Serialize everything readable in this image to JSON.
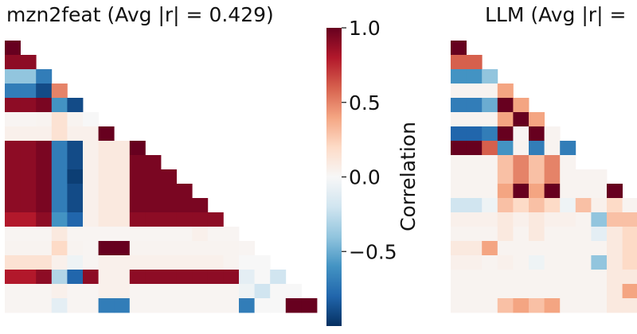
{
  "chart_data": [
    {
      "type": "heatmap",
      "title": "mzn2feat (Avg |r| = 0.429)",
      "lower_triangle": true,
      "n_features": 20,
      "x_tick_labels": [],
      "y_tick_labels": [],
      "note_values": "approximate correlation values read from colour, rows top to bottom, row i holds columns 0..i",
      "rows": [
        [
          1.0
        ],
        [
          0.9,
          0.9
        ],
        [
          -0.4,
          -0.4,
          -0.7
        ],
        [
          -0.7,
          -0.7,
          -0.9,
          0.5
        ],
        [
          0.9,
          0.9,
          0.95,
          -0.6,
          -0.9
        ],
        [
          0.02,
          0.02,
          0.03,
          0.15,
          0.03,
          0.0
        ],
        [
          0.05,
          0.05,
          0.05,
          0.15,
          0.05,
          0.05,
          1.0
        ],
        [
          0.9,
          0.9,
          0.95,
          -0.7,
          -0.9,
          0.05,
          0.1,
          0.1,
          1.0
        ],
        [
          0.9,
          0.9,
          0.95,
          -0.7,
          -0.9,
          0.05,
          0.1,
          0.1,
          0.95,
          0.95
        ],
        [
          0.9,
          0.9,
          0.95,
          -0.7,
          -0.95,
          0.05,
          0.1,
          0.1,
          0.95,
          0.95,
          0.95
        ],
        [
          0.9,
          0.9,
          0.95,
          -0.7,
          -0.9,
          0.05,
          0.1,
          0.1,
          0.95,
          0.95,
          0.95,
          0.95
        ],
        [
          0.9,
          0.9,
          0.95,
          -0.7,
          -0.9,
          0.05,
          0.1,
          0.1,
          0.95,
          0.95,
          0.95,
          0.95,
          0.95
        ],
        [
          0.8,
          0.8,
          0.9,
          -0.6,
          -0.8,
          0.05,
          0.1,
          0.1,
          0.9,
          0.9,
          0.9,
          0.9,
          0.9,
          0.9
        ],
        [
          0.02,
          0.02,
          0.02,
          0.1,
          0.02,
          0.02,
          0.02,
          0.02,
          0.02,
          0.02,
          0.02,
          0.02,
          0.05,
          0.02,
          0.02
        ],
        [
          0.03,
          0.03,
          0.03,
          0.2,
          0.03,
          0.02,
          1.0,
          1.0,
          0.03,
          0.03,
          0.03,
          0.03,
          0.03,
          0.03,
          0.03,
          0.02
        ],
        [
          0.15,
          0.15,
          0.15,
          0.05,
          -0.05,
          0.02,
          0.05,
          0.05,
          0.05,
          0.05,
          0.05,
          0.05,
          0.05,
          0.05,
          0.03,
          0.0,
          0.0
        ],
        [
          0.8,
          0.8,
          0.9,
          -0.3,
          -0.8,
          0.9,
          0.05,
          0.05,
          0.9,
          0.9,
          0.9,
          0.9,
          0.9,
          0.9,
          0.9,
          -0.1,
          0.0,
          -0.2
        ],
        [
          0.02,
          0.02,
          0.02,
          0.05,
          0.02,
          0.02,
          0.05,
          0.05,
          0.02,
          0.02,
          0.02,
          0.02,
          0.02,
          0.02,
          0.02,
          -0.05,
          -0.2,
          0.0,
          0.0
        ],
        [
          0.02,
          0.02,
          0.02,
          -0.1,
          0.02,
          0.02,
          -0.7,
          -0.7,
          0.02,
          0.02,
          0.02,
          0.02,
          0.02,
          0.02,
          0.02,
          -0.7,
          0.0,
          0.0,
          1.0,
          1.0
        ]
      ]
    },
    {
      "type": "heatmap",
      "title": "LLM (Avg |r| =",
      "lower_triangle": true,
      "n_features": 20,
      "x_tick_labels": [],
      "y_tick_labels": [],
      "note_values": "approximate correlation values for visible columns only; panel is cut off at right edge",
      "rows": [
        [
          1.0
        ],
        [
          0.6,
          0.6
        ],
        [
          -0.6,
          -0.6,
          -0.4
        ],
        [
          0.03,
          0.03,
          0.03,
          0.4
        ],
        [
          -0.7,
          -0.7,
          -0.5,
          1.0,
          0.4
        ],
        [
          0.03,
          0.03,
          0.03,
          0.4,
          1.0,
          0.4
        ],
        [
          -0.8,
          -0.8,
          -0.7,
          1.0,
          0.02,
          1.0,
          0.03
        ],
        [
          1.0,
          1.0,
          0.6,
          -0.6,
          0.03,
          -0.7,
          0.03,
          -0.7
        ],
        [
          0.03,
          0.03,
          0.03,
          0.3,
          0.5,
          0.3,
          0.5,
          0.03
        ],
        [
          0.03,
          0.03,
          0.03,
          0.3,
          0.5,
          0.3,
          0.5,
          0.03,
          0.03,
          0.03
        ],
        [
          0.03,
          0.03,
          0.03,
          0.4,
          1.0,
          0.4,
          1.0,
          0.03,
          0.03,
          0.03,
          1.0
        ],
        [
          -0.2,
          -0.2,
          -0.05,
          0.3,
          0.2,
          0.3,
          0.2,
          -0.05,
          0.3,
          0.05,
          0.2,
          0.03
        ],
        [
          0.05,
          0.05,
          0.05,
          0.1,
          0.05,
          0.1,
          0.05,
          0.05,
          0.03,
          -0.4,
          0.3,
          0.3,
          0.1
        ],
        [
          0.03,
          0.03,
          0.03,
          0.1,
          0.03,
          0.1,
          0.03,
          0.03,
          0.03,
          -0.1,
          0.1,
          0.2,
          0.1
        ],
        [
          0.1,
          0.1,
          0.4,
          0.03,
          0.03,
          0.03,
          0.03,
          0.03,
          0.03,
          0.03,
          0.1,
          0.2,
          0.1
        ],
        [
          0.05,
          0.05,
          0.03,
          0.05,
          0.03,
          -0.05,
          0.03,
          0.03,
          0.03,
          -0.4,
          0.1,
          0.2,
          0.1
        ],
        [
          0.03,
          0.03,
          0.03,
          0.03,
          0.03,
          0.03,
          0.03,
          0.03,
          0.03,
          0.03,
          0.1,
          0.1,
          0.1
        ],
        [
          0.03,
          0.03,
          0.03,
          0.03,
          0.03,
          0.03,
          0.03,
          0.03,
          0.03,
          0.03,
          0.1,
          0.4,
          0.4
        ],
        [
          0.03,
          0.03,
          0.03,
          0.3,
          0.4,
          0.3,
          0.4,
          0.03,
          0.03,
          0.03,
          0.1,
          0.1,
          0.1
        ]
      ]
    }
  ],
  "colorbar": {
    "label": "Correlation",
    "range": [
      -1.0,
      1.0
    ],
    "ticks": [
      {
        "value": 1.0,
        "label": "1.0"
      },
      {
        "value": 0.5,
        "label": "0.5"
      },
      {
        "value": 0.0,
        "label": "0.0"
      },
      {
        "value": -0.5,
        "label": "−0.5"
      }
    ],
    "colormap": "RdBu_r",
    "stops": [
      "#67001f",
      "#b2182b",
      "#d6604d",
      "#f4a582",
      "#fddbc7",
      "#f7f7f7",
      "#d1e5f0",
      "#92c5de",
      "#4393c3",
      "#2166ac",
      "#053061"
    ]
  }
}
